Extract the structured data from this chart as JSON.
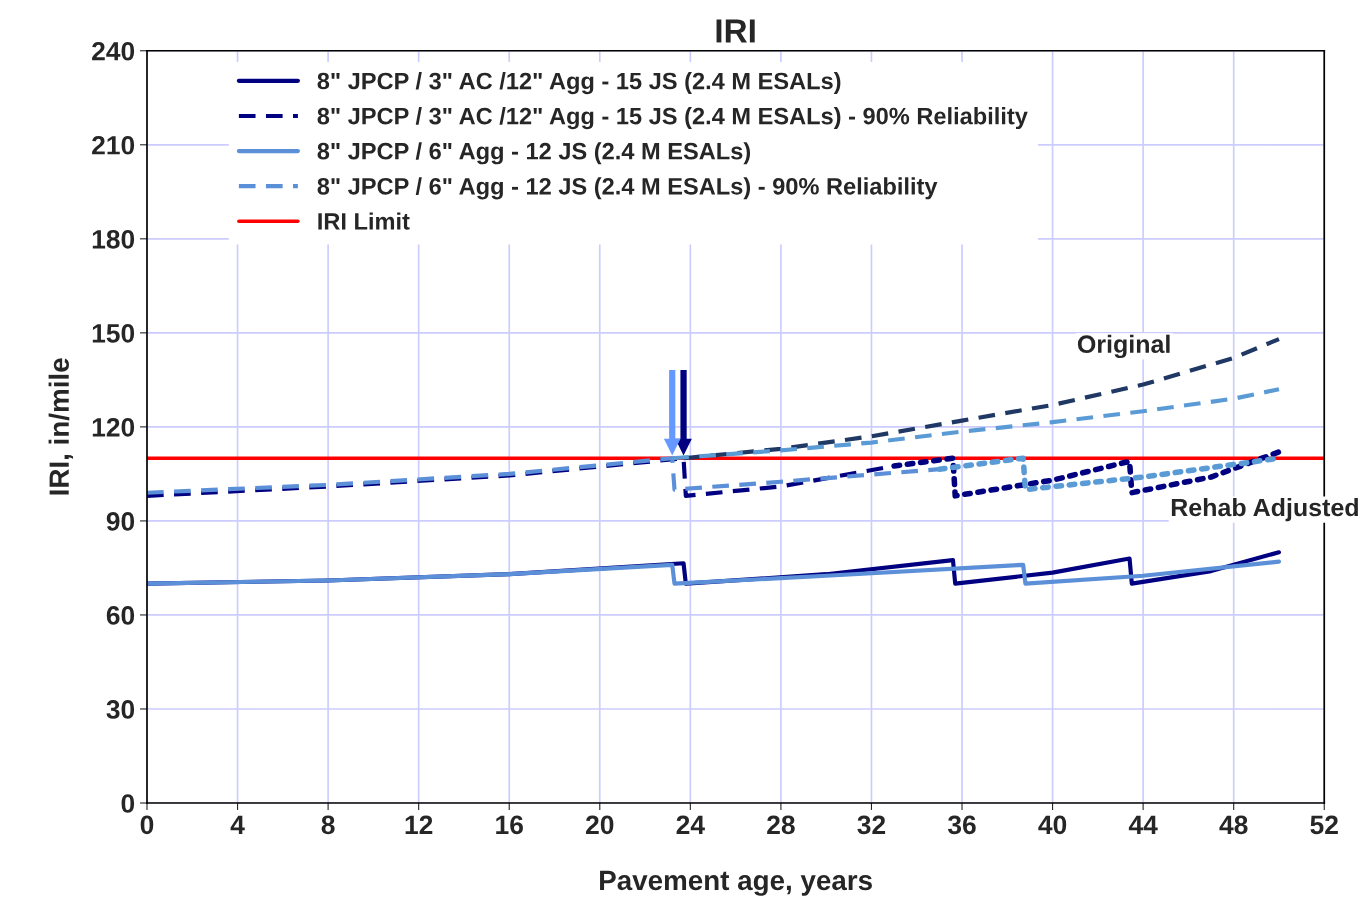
{
  "chart_data": {
    "type": "line",
    "title": "IRI",
    "xlabel": "Pavement age, years",
    "ylabel": "IRI, in/mile",
    "xlim": [
      0,
      52
    ],
    "xticks": [
      0,
      4,
      8,
      12,
      16,
      20,
      24,
      28,
      32,
      36,
      40,
      44,
      48,
      52
    ],
    "ylim": [
      0,
      240
    ],
    "yticks": [
      0,
      30,
      60,
      90,
      120,
      150,
      180,
      210,
      240
    ],
    "grid": true,
    "legend": "top left",
    "marker": "none",
    "series": [
      {
        "name": "8\" JPCP / 3\" AC /12\" Agg - 15 JS (2.4 M ESALs)",
        "color": "#000080",
        "line_style": "solid",
        "x": [
          0,
          8,
          16,
          23.7,
          23.8,
          30,
          35.6,
          35.7,
          40,
          43.4,
          43.5,
          47,
          50
        ],
        "values": [
          70,
          71,
          73,
          76.5,
          70,
          73,
          77.5,
          70,
          73.5,
          78,
          70,
          74,
          80
        ]
      },
      {
        "name": "8\" JPCP / 3\" AC /12\" Agg - 15 JS (2.4 M ESALs) - 90% Reliability",
        "color": "#000080",
        "line_style": "dashed",
        "x": [
          0,
          8,
          16,
          23.7,
          23.8,
          28,
          33
        ],
        "values": [
          98,
          101,
          104.5,
          110,
          98,
          101,
          107.5
        ]
      },
      {
        "name": "8\" JPCP / 6\" Agg - 12 JS (2.4 M ESALs)",
        "color": "#5b8fd8",
        "line_style": "solid",
        "x": [
          0,
          8,
          16,
          23.2,
          23.3,
          30,
          38.7,
          38.8,
          44,
          50
        ],
        "values": [
          70,
          71,
          73,
          76,
          70,
          72.5,
          76,
          70,
          72.5,
          77
        ]
      },
      {
        "name": "8\" JPCP / 6\" Agg - 12 JS (2.4 M ESALs) - 90% Reliability",
        "color": "#5b8fd8",
        "line_style": "dashed",
        "x": [
          0,
          8,
          16,
          23.2,
          23.3,
          28,
          35
        ],
        "values": [
          99,
          101.5,
          105,
          110,
          100,
          102.5,
          106.5
        ]
      },
      {
        "color": "#1f3864",
        "line_style": "dashed",
        "x": [
          23.7,
          28,
          32,
          36,
          40,
          44,
          48,
          50
        ],
        "values": [
          110,
          113,
          117,
          122,
          127,
          133.5,
          142,
          148
        ]
      },
      {
        "color": "#5b9bd5",
        "line_style": "dashed",
        "x": [
          23.2,
          28,
          32,
          36,
          40,
          44,
          48,
          50
        ],
        "values": [
          110,
          112.5,
          115,
          118.5,
          121.5,
          125,
          129,
          132
        ]
      },
      {
        "color": "#000080",
        "line_style": "dotted",
        "x": [
          33,
          35.6,
          35.7,
          40,
          43.4,
          43.5,
          47,
          50
        ],
        "values": [
          107.5,
          110,
          98,
          103,
          109,
          99,
          104,
          112
        ]
      },
      {
        "color": "#5b9bd5",
        "line_style": "dotted",
        "x": [
          35,
          38.7,
          38.8,
          44,
          50
        ],
        "values": [
          106.5,
          110,
          100,
          104,
          110
        ]
      }
    ],
    "ref_lines": [
      {
        "axis": "y",
        "value": 110,
        "label": "IRI Limit",
        "color": "#ff0000",
        "line_style": "solid"
      }
    ],
    "annotations": [
      "Original",
      "Rehab Adjusted"
    ]
  }
}
